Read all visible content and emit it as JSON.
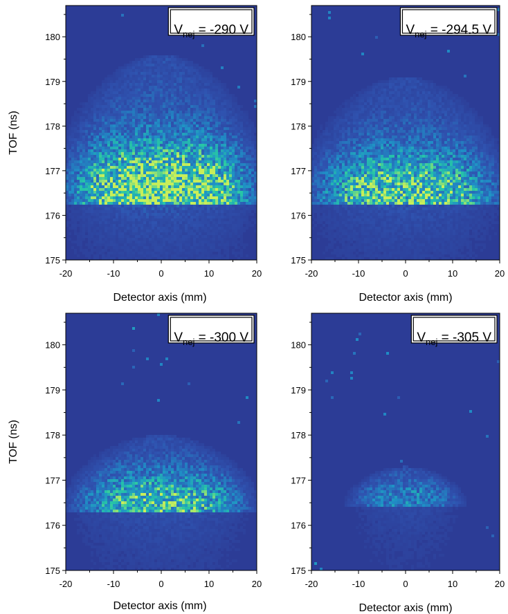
{
  "colors": {
    "background": "#2c3c96",
    "low": "#2f53b0",
    "mid": "#1f8fc6",
    "high": "#27c6a6",
    "peak": "#c8ee5a"
  },
  "chart_data": [
    {
      "type": "heatmap",
      "legend": {
        "text": "V",
        "sub": "nej",
        "suffix": " = -290 V",
        "placement": "top-right"
      },
      "xlabel": "Detector axis (mm)",
      "ylabel": "TOF (ns)",
      "xlim": [
        -20,
        20
      ],
      "ylim": [
        175,
        180.7
      ],
      "xticks": [
        -20,
        -10,
        0,
        10,
        20
      ],
      "yticks": [
        175,
        176,
        177,
        178,
        179,
        180
      ],
      "distribution": {
        "peak_tof_ns": 176.45,
        "front_edge_tof_ns": 176.25,
        "top_tof_ns": 179.6,
        "half_width_mm": 21,
        "peak_intensity": 1.0
      }
    },
    {
      "type": "heatmap",
      "legend": {
        "text": "V",
        "sub": "nej",
        "suffix": " = -294.5 V",
        "placement": "top-right"
      },
      "xlabel": "Detector axis (mm)",
      "ylabel": "",
      "xlim": [
        -20,
        20
      ],
      "ylim": [
        175,
        180.7
      ],
      "xticks": [
        -20,
        -10,
        0,
        10,
        20
      ],
      "yticks": [
        175,
        176,
        177,
        178,
        179,
        180
      ],
      "distribution": {
        "peak_tof_ns": 176.45,
        "front_edge_tof_ns": 176.25,
        "top_tof_ns": 179.1,
        "half_width_mm": 21,
        "peak_intensity": 0.85
      }
    },
    {
      "type": "heatmap",
      "legend": {
        "text": "V",
        "sub": "nej",
        "suffix": " = -300 V",
        "placement": "top-right"
      },
      "xlabel": "Detector axis (mm)",
      "ylabel": "TOF (ns)",
      "xlim": [
        -20,
        20
      ],
      "ylim": [
        175,
        180.7
      ],
      "xticks": [
        -20,
        -10,
        0,
        10,
        20
      ],
      "yticks": [
        175,
        176,
        177,
        178,
        179,
        180
      ],
      "distribution": {
        "peak_tof_ns": 176.5,
        "front_edge_tof_ns": 176.3,
        "top_tof_ns": 178.0,
        "half_width_mm": 19,
        "peak_intensity": 0.8
      }
    },
    {
      "type": "heatmap",
      "legend": {
        "text": "V",
        "sub": "nej",
        "suffix": " = -305 V",
        "placement": "top-right"
      },
      "xlabel": "Detector axis (mm)",
      "ylabel": "",
      "xlim": [
        -20,
        20
      ],
      "ylim": [
        175,
        180.7
      ],
      "xticks": [
        -20,
        -10,
        0,
        10,
        20
      ],
      "yticks": [
        175,
        176,
        177,
        178,
        179,
        180
      ],
      "distribution": {
        "peak_tof_ns": 176.6,
        "front_edge_tof_ns": 176.4,
        "top_tof_ns": 177.3,
        "half_width_mm": 12,
        "peak_intensity": 0.55
      }
    }
  ]
}
